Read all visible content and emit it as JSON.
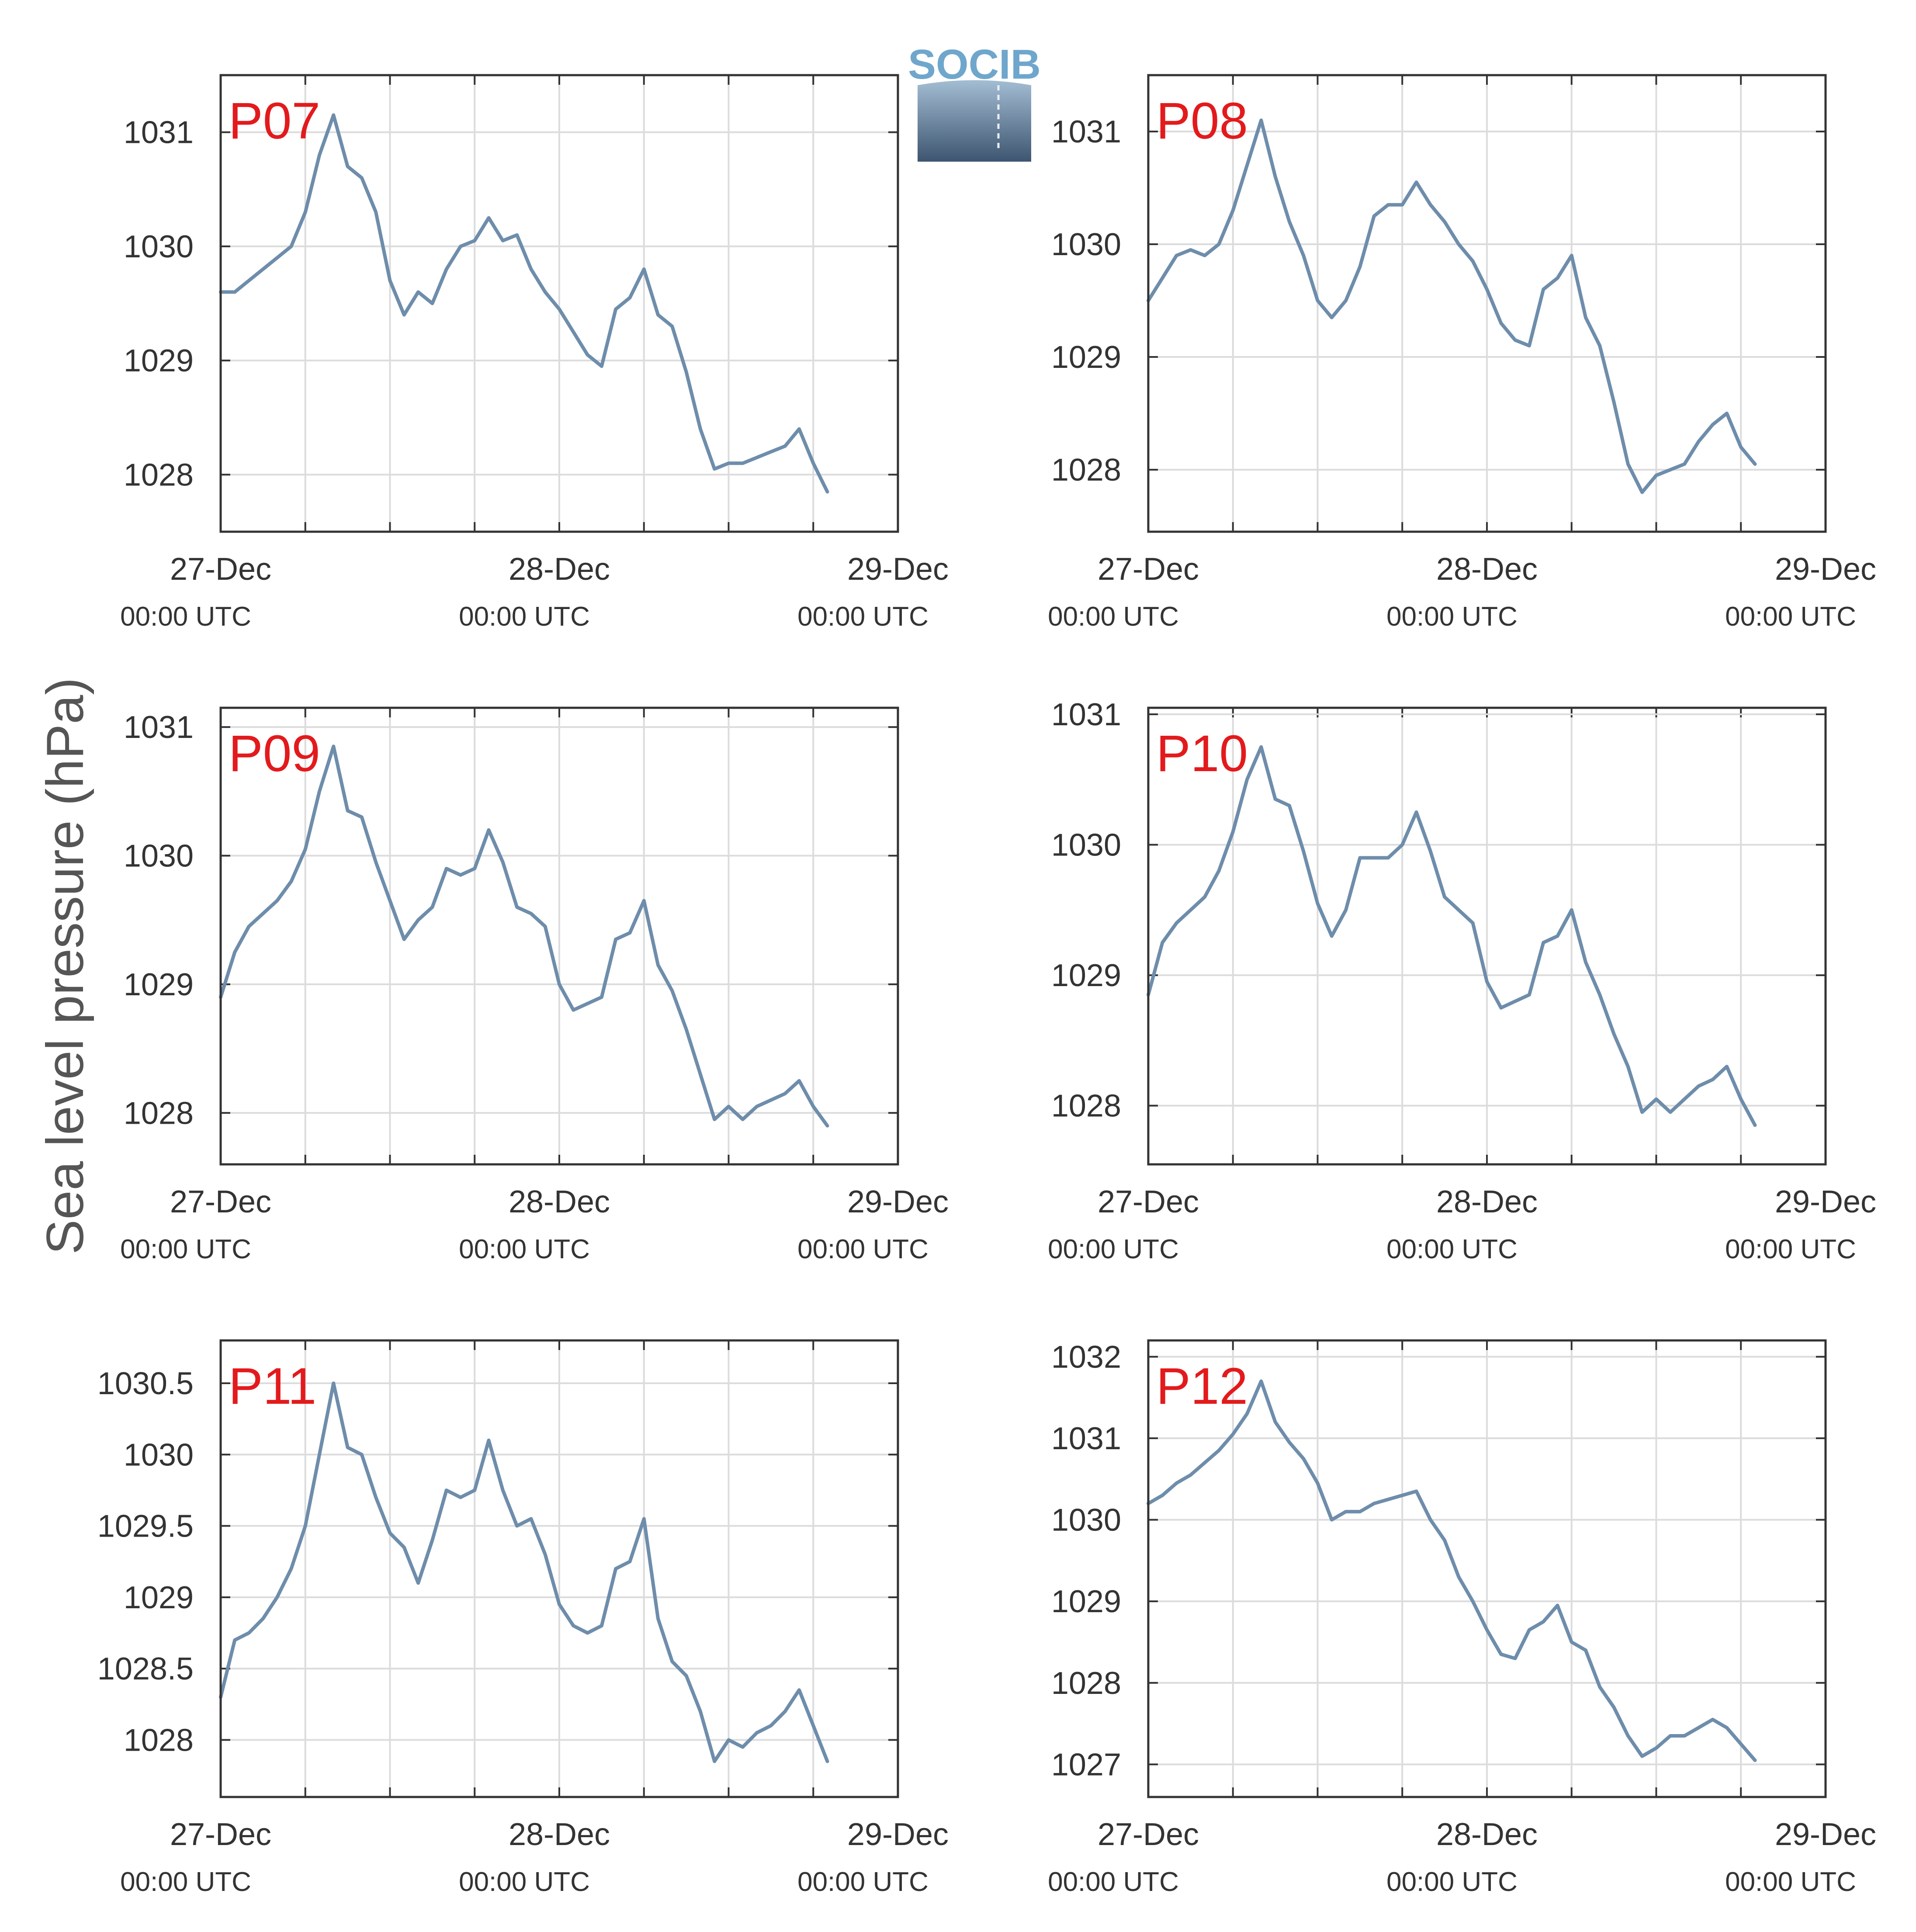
{
  "figure": {
    "ylabel": "Sea level pressure (hPa)",
    "line_color": "#6e8dab",
    "panel_label_color": "#e31a1c",
    "logo_text": "SOCIB"
  },
  "chart_data": [
    {
      "type": "line",
      "panel_label": "P07",
      "x_ticks": [
        {
          "date": "27-Dec",
          "time": "00:00 UTC"
        },
        {
          "date": "28-Dec",
          "time": "00:00 UTC"
        },
        {
          "date": "29-Dec",
          "time": "00:00 UTC"
        }
      ],
      "x_range_hours": [
        0,
        48
      ],
      "y_ticks": [
        "1028",
        "1029",
        "1030",
        "1031"
      ],
      "ylim": [
        1027.5,
        1031.5
      ],
      "grid": true,
      "x": [
        0,
        1,
        2,
        3,
        4,
        5,
        6,
        7,
        8,
        9,
        10,
        11,
        12,
        13,
        14,
        15,
        16,
        17,
        18,
        19,
        20,
        21,
        22,
        23,
        24,
        25,
        26,
        27,
        28,
        29,
        30,
        31,
        32,
        33,
        34,
        35,
        36,
        37,
        38,
        39,
        40,
        41,
        42,
        43,
        44,
        45,
        46,
        47,
        48
      ],
      "values": [
        1029.6,
        1029.6,
        1029.7,
        1029.8,
        1029.9,
        1030.0,
        1030.3,
        1030.8,
        1031.15,
        1030.7,
        1030.6,
        1030.3,
        1029.7,
        1029.4,
        1029.6,
        1029.5,
        1029.8,
        1030.0,
        1030.05,
        1030.25,
        1030.05,
        1030.1,
        1029.8,
        1029.6,
        1029.45,
        1029.25,
        1029.05,
        1028.95,
        1029.45,
        1029.55,
        1029.8,
        1029.4,
        1029.3,
        1028.9,
        1028.4,
        1028.05,
        1028.1,
        1028.1,
        1028.15,
        1028.2,
        1028.25,
        1028.4,
        1028.1,
        1027.85,
        null,
        null,
        null,
        null,
        null
      ]
    },
    {
      "type": "line",
      "panel_label": "P08",
      "x_ticks": [
        {
          "date": "27-Dec",
          "time": "00:00 UTC"
        },
        {
          "date": "28-Dec",
          "time": "00:00 UTC"
        },
        {
          "date": "29-Dec",
          "time": "00:00 UTC"
        }
      ],
      "x_range_hours": [
        0,
        48
      ],
      "y_ticks": [
        "1028",
        "1029",
        "1030",
        "1031"
      ],
      "ylim": [
        1027.45,
        1031.5
      ],
      "grid": true,
      "x": [
        0,
        1,
        2,
        3,
        4,
        5,
        6,
        7,
        8,
        9,
        10,
        11,
        12,
        13,
        14,
        15,
        16,
        17,
        18,
        19,
        20,
        21,
        22,
        23,
        24,
        25,
        26,
        27,
        28,
        29,
        30,
        31,
        32,
        33,
        34,
        35,
        36,
        37,
        38,
        39,
        40,
        41,
        42,
        43,
        44,
        45,
        46,
        47,
        48
      ],
      "values": [
        1029.5,
        1029.7,
        1029.9,
        1029.95,
        1029.9,
        1030.0,
        1030.3,
        1030.7,
        1031.1,
        1030.6,
        1030.2,
        1029.9,
        1029.5,
        1029.35,
        1029.5,
        1029.8,
        1030.25,
        1030.35,
        1030.35,
        1030.55,
        1030.35,
        1030.2,
        1030.0,
        1029.85,
        1029.6,
        1029.3,
        1029.15,
        1029.1,
        1029.6,
        1029.7,
        1029.9,
        1029.35,
        1029.1,
        1028.6,
        1028.05,
        1027.8,
        1027.95,
        1028.0,
        1028.05,
        1028.25,
        1028.4,
        1028.5,
        1028.2,
        1028.05,
        null,
        null,
        null,
        null,
        null
      ]
    },
    {
      "type": "line",
      "panel_label": "P09",
      "x_ticks": [
        {
          "date": "27-Dec",
          "time": "00:00 UTC"
        },
        {
          "date": "28-Dec",
          "time": "00:00 UTC"
        },
        {
          "date": "29-Dec",
          "time": "00:00 UTC"
        }
      ],
      "x_range_hours": [
        0,
        48
      ],
      "y_ticks": [
        "1028",
        "1029",
        "1030",
        "1031"
      ],
      "ylim": [
        1027.6,
        1031.15
      ],
      "grid": true,
      "x": [
        0,
        1,
        2,
        3,
        4,
        5,
        6,
        7,
        8,
        9,
        10,
        11,
        12,
        13,
        14,
        15,
        16,
        17,
        18,
        19,
        20,
        21,
        22,
        23,
        24,
        25,
        26,
        27,
        28,
        29,
        30,
        31,
        32,
        33,
        34,
        35,
        36,
        37,
        38,
        39,
        40,
        41,
        42,
        43,
        44,
        45,
        46,
        47,
        48
      ],
      "values": [
        1028.9,
        1029.25,
        1029.45,
        1029.55,
        1029.65,
        1029.8,
        1030.05,
        1030.5,
        1030.85,
        1030.35,
        1030.3,
        1029.95,
        1029.65,
        1029.35,
        1029.5,
        1029.6,
        1029.9,
        1029.85,
        1029.9,
        1030.2,
        1029.95,
        1029.6,
        1029.55,
        1029.45,
        1029.0,
        1028.8,
        1028.85,
        1028.9,
        1029.35,
        1029.4,
        1029.65,
        1029.15,
        1028.95,
        1028.65,
        1028.3,
        1027.95,
        1028.05,
        1027.95,
        1028.05,
        1028.1,
        1028.15,
        1028.25,
        1028.05,
        1027.9,
        null,
        null,
        null,
        null,
        null
      ]
    },
    {
      "type": "line",
      "panel_label": "P10",
      "x_ticks": [
        {
          "date": "27-Dec",
          "time": "00:00 UTC"
        },
        {
          "date": "28-Dec",
          "time": "00:00 UTC"
        },
        {
          "date": "29-Dec",
          "time": "00:00 UTC"
        }
      ],
      "x_range_hours": [
        0,
        48
      ],
      "y_ticks": [
        "1028",
        "1029",
        "1030",
        "1031"
      ],
      "ylim": [
        1027.55,
        1031.05
      ],
      "grid": true,
      "x": [
        0,
        1,
        2,
        3,
        4,
        5,
        6,
        7,
        8,
        9,
        10,
        11,
        12,
        13,
        14,
        15,
        16,
        17,
        18,
        19,
        20,
        21,
        22,
        23,
        24,
        25,
        26,
        27,
        28,
        29,
        30,
        31,
        32,
        33,
        34,
        35,
        36,
        37,
        38,
        39,
        40,
        41,
        42,
        43,
        44,
        45,
        46,
        47,
        48
      ],
      "values": [
        1028.85,
        1029.25,
        1029.4,
        1029.5,
        1029.6,
        1029.8,
        1030.1,
        1030.5,
        1030.75,
        1030.35,
        1030.3,
        1029.95,
        1029.55,
        1029.3,
        1029.5,
        1029.9,
        1029.9,
        1029.9,
        1030.0,
        1030.25,
        1029.95,
        1029.6,
        1029.5,
        1029.4,
        1028.95,
        1028.75,
        1028.8,
        1028.85,
        1029.25,
        1029.3,
        1029.5,
        1029.1,
        1028.85,
        1028.55,
        1028.3,
        1027.95,
        1028.05,
        1027.95,
        1028.05,
        1028.15,
        1028.2,
        1028.3,
        1028.05,
        1027.85,
        null,
        null,
        null,
        null,
        null
      ]
    },
    {
      "type": "line",
      "panel_label": "P11",
      "x_ticks": [
        {
          "date": "27-Dec",
          "time": "00:00 UTC"
        },
        {
          "date": "28-Dec",
          "time": "00:00 UTC"
        },
        {
          "date": "29-Dec",
          "time": "00:00 UTC"
        }
      ],
      "x_range_hours": [
        0,
        48
      ],
      "y_ticks": [
        "1028",
        "1028.5",
        "1029",
        "1029.5",
        "1030",
        "1030.5"
      ],
      "ylim": [
        1027.6,
        1030.8
      ],
      "grid": true,
      "x": [
        0,
        1,
        2,
        3,
        4,
        5,
        6,
        7,
        8,
        9,
        10,
        11,
        12,
        13,
        14,
        15,
        16,
        17,
        18,
        19,
        20,
        21,
        22,
        23,
        24,
        25,
        26,
        27,
        28,
        29,
        30,
        31,
        32,
        33,
        34,
        35,
        36,
        37,
        38,
        39,
        40,
        41,
        42,
        43,
        44,
        45,
        46,
        47,
        48
      ],
      "values": [
        1028.3,
        1028.7,
        1028.75,
        1028.85,
        1029.0,
        1029.2,
        1029.5,
        1030.0,
        1030.5,
        1030.05,
        1030.0,
        1029.7,
        1029.45,
        1029.35,
        1029.1,
        1029.4,
        1029.75,
        1029.7,
        1029.75,
        1030.1,
        1029.75,
        1029.5,
        1029.55,
        1029.3,
        1028.95,
        1028.8,
        1028.75,
        1028.8,
        1029.2,
        1029.25,
        1029.55,
        1028.85,
        1028.55,
        1028.45,
        1028.2,
        1027.85,
        1028.0,
        1027.95,
        1028.05,
        1028.1,
        1028.2,
        1028.35,
        1028.1,
        1027.85,
        null,
        null,
        null,
        null,
        null
      ]
    },
    {
      "type": "line",
      "panel_label": "P12",
      "x_ticks": [
        {
          "date": "27-Dec",
          "time": "00:00 UTC"
        },
        {
          "date": "28-Dec",
          "time": "00:00 UTC"
        },
        {
          "date": "29-Dec",
          "time": "00:00 UTC"
        }
      ],
      "x_range_hours": [
        0,
        48
      ],
      "y_ticks": [
        "1027",
        "1028",
        "1029",
        "1030",
        "1031",
        "1032"
      ],
      "ylim": [
        1026.6,
        1032.2
      ],
      "grid": true,
      "x": [
        0,
        1,
        2,
        3,
        4,
        5,
        6,
        7,
        8,
        9,
        10,
        11,
        12,
        13,
        14,
        15,
        16,
        17,
        18,
        19,
        20,
        21,
        22,
        23,
        24,
        25,
        26,
        27,
        28,
        29,
        30,
        31,
        32,
        33,
        34,
        35,
        36,
        37,
        38,
        39,
        40,
        41,
        42,
        43,
        44,
        45,
        46,
        47,
        48
      ],
      "values": [
        1030.2,
        1030.3,
        1030.45,
        1030.55,
        1030.7,
        1030.85,
        1031.05,
        1031.3,
        1031.7,
        1031.2,
        1030.95,
        1030.75,
        1030.45,
        1030.0,
        1030.1,
        1030.1,
        1030.2,
        1030.25,
        1030.3,
        1030.35,
        1030.0,
        1029.75,
        1029.3,
        1029.0,
        1028.65,
        1028.35,
        1028.3,
        1028.65,
        1028.75,
        1028.95,
        1028.5,
        1028.4,
        1027.95,
        1027.7,
        1027.35,
        1027.1,
        1027.2,
        1027.35,
        1027.35,
        1027.45,
        1027.55,
        1027.45,
        1027.25,
        1027.05,
        null,
        null,
        null,
        null,
        null
      ]
    }
  ]
}
